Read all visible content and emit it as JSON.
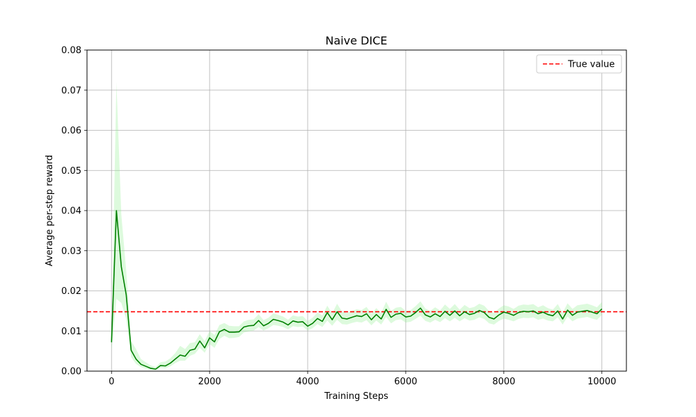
{
  "chart_data": {
    "type": "line",
    "title": "Naive DICE",
    "xlabel": "Training Steps",
    "ylabel": "Average per-step reward",
    "xlim": [
      -500,
      10500
    ],
    "ylim": [
      0,
      0.08
    ],
    "xticks": [
      0,
      2000,
      4000,
      6000,
      8000,
      10000
    ],
    "xtick_labels": [
      "0",
      "2000",
      "4000",
      "6000",
      "8000",
      "10000"
    ],
    "yticks": [
      0,
      0.01,
      0.02,
      0.03,
      0.04,
      0.05,
      0.06,
      0.07,
      0.08
    ],
    "ytick_labels": [
      "0.00",
      "0.01",
      "0.02",
      "0.03",
      "0.04",
      "0.05",
      "0.06",
      "0.07",
      "0.08"
    ],
    "grid": true,
    "legend_position": "top-right",
    "colors": {
      "line": "#008000",
      "band": "#90ee90",
      "reference": "#ff0000"
    },
    "reference_line": {
      "name": "True value",
      "y": 0.0148,
      "style": "dashed"
    },
    "series": [
      {
        "x": [
          0,
          100,
          200,
          300,
          400,
          500,
          600,
          700,
          800,
          900,
          1000,
          1100,
          1200,
          1300,
          1400,
          1500,
          1600,
          1700,
          1800,
          1900,
          2000,
          2100,
          2200,
          2300,
          2400,
          2500,
          2600,
          2700,
          2800,
          2900,
          3000,
          3100,
          3200,
          3300,
          3400,
          3500,
          3600,
          3700,
          3800,
          3900,
          4000,
          4100,
          4200,
          4300,
          4400,
          4500,
          4600,
          4700,
          4800,
          4900,
          5000,
          5100,
          5200,
          5300,
          5400,
          5500,
          5600,
          5700,
          5800,
          5900,
          6000,
          6100,
          6200,
          6300,
          6400,
          6500,
          6600,
          6700,
          6800,
          6900,
          7000,
          7100,
          7200,
          7300,
          7400,
          7500,
          7600,
          7700,
          7800,
          7900,
          8000,
          8100,
          8200,
          8300,
          8400,
          8500,
          8600,
          8700,
          8800,
          8900,
          9000,
          9100,
          9200,
          9300,
          9400,
          9500,
          9600,
          9700,
          9800,
          9900,
          10000
        ],
        "y": [
          0.0072,
          0.04,
          0.026,
          0.019,
          0.0052,
          0.003,
          0.0017,
          0.0012,
          0.0007,
          0.0005,
          0.0014,
          0.0013,
          0.002,
          0.003,
          0.004,
          0.0037,
          0.0052,
          0.0055,
          0.0075,
          0.0058,
          0.0083,
          0.0073,
          0.0098,
          0.0104,
          0.0097,
          0.0097,
          0.0098,
          0.011,
          0.0113,
          0.0114,
          0.0126,
          0.0113,
          0.0119,
          0.0129,
          0.0126,
          0.0122,
          0.0115,
          0.0125,
          0.0122,
          0.0123,
          0.0112,
          0.0119,
          0.0131,
          0.0124,
          0.0146,
          0.0128,
          0.0148,
          0.0132,
          0.013,
          0.0134,
          0.0138,
          0.0136,
          0.0143,
          0.0128,
          0.0141,
          0.013,
          0.0154,
          0.0134,
          0.0142,
          0.0144,
          0.0135,
          0.0137,
          0.0146,
          0.0157,
          0.014,
          0.0135,
          0.0143,
          0.0136,
          0.0149,
          0.0139,
          0.015,
          0.0138,
          0.0148,
          0.0141,
          0.0144,
          0.0151,
          0.0146,
          0.0134,
          0.013,
          0.014,
          0.0147,
          0.0144,
          0.0139,
          0.0146,
          0.0149,
          0.0148,
          0.015,
          0.0143,
          0.0147,
          0.0141,
          0.0138,
          0.015,
          0.013,
          0.0152,
          0.0139,
          0.0147,
          0.0149,
          0.0151,
          0.0147,
          0.0143,
          0.0155
        ],
        "lower": [
          0.005,
          0.018,
          0.017,
          0.013,
          0.0035,
          0.0018,
          0.001,
          0.0006,
          0.0003,
          0.0002,
          0.0008,
          0.0007,
          0.0012,
          0.002,
          0.0026,
          0.0026,
          0.0038,
          0.0043,
          0.0058,
          0.0046,
          0.0067,
          0.0058,
          0.008,
          0.0088,
          0.0082,
          0.0083,
          0.0085,
          0.0096,
          0.0099,
          0.0101,
          0.011,
          0.0101,
          0.0107,
          0.0115,
          0.0113,
          0.011,
          0.0104,
          0.0112,
          0.011,
          0.0111,
          0.0101,
          0.0107,
          0.0117,
          0.011,
          0.0126,
          0.0113,
          0.0128,
          0.0117,
          0.0116,
          0.012,
          0.0123,
          0.0121,
          0.0127,
          0.0114,
          0.0126,
          0.0116,
          0.0135,
          0.0119,
          0.0127,
          0.0129,
          0.0121,
          0.0123,
          0.013,
          0.0138,
          0.0125,
          0.0121,
          0.0128,
          0.0122,
          0.0132,
          0.0124,
          0.0133,
          0.0124,
          0.0132,
          0.0126,
          0.0128,
          0.0134,
          0.013,
          0.0119,
          0.0116,
          0.0125,
          0.0131,
          0.0128,
          0.0124,
          0.013,
          0.0133,
          0.0132,
          0.0134,
          0.0128,
          0.0131,
          0.0126,
          0.0124,
          0.0134,
          0.0116,
          0.0136,
          0.0124,
          0.0131,
          0.0133,
          0.0135,
          0.0131,
          0.0128,
          0.014
        ],
        "upper": [
          0.0095,
          0.072,
          0.039,
          0.025,
          0.0075,
          0.0055,
          0.003,
          0.0022,
          0.0014,
          0.001,
          0.0022,
          0.0024,
          0.0032,
          0.0045,
          0.0063,
          0.0055,
          0.007,
          0.0072,
          0.0092,
          0.0075,
          0.01,
          0.009,
          0.0115,
          0.012,
          0.0113,
          0.0112,
          0.0112,
          0.0124,
          0.0128,
          0.0129,
          0.0142,
          0.0127,
          0.0133,
          0.0144,
          0.014,
          0.0136,
          0.0128,
          0.0139,
          0.0136,
          0.0137,
          0.0125,
          0.0133,
          0.0146,
          0.0139,
          0.0163,
          0.0144,
          0.0168,
          0.0148,
          0.0145,
          0.015,
          0.0154,
          0.0152,
          0.016,
          0.0143,
          0.0157,
          0.0145,
          0.0173,
          0.015,
          0.0158,
          0.016,
          0.015,
          0.0152,
          0.0162,
          0.0174,
          0.0156,
          0.015,
          0.0159,
          0.0151,
          0.0166,
          0.0155,
          0.0167,
          0.0153,
          0.0165,
          0.0157,
          0.016,
          0.0168,
          0.0163,
          0.015,
          0.0145,
          0.0156,
          0.0164,
          0.0161,
          0.0155,
          0.0163,
          0.0166,
          0.0165,
          0.0167,
          0.0159,
          0.0164,
          0.0157,
          0.0153,
          0.0167,
          0.0145,
          0.0169,
          0.0155,
          0.0164,
          0.0166,
          0.0168,
          0.0164,
          0.0159,
          0.0172
        ]
      }
    ]
  }
}
